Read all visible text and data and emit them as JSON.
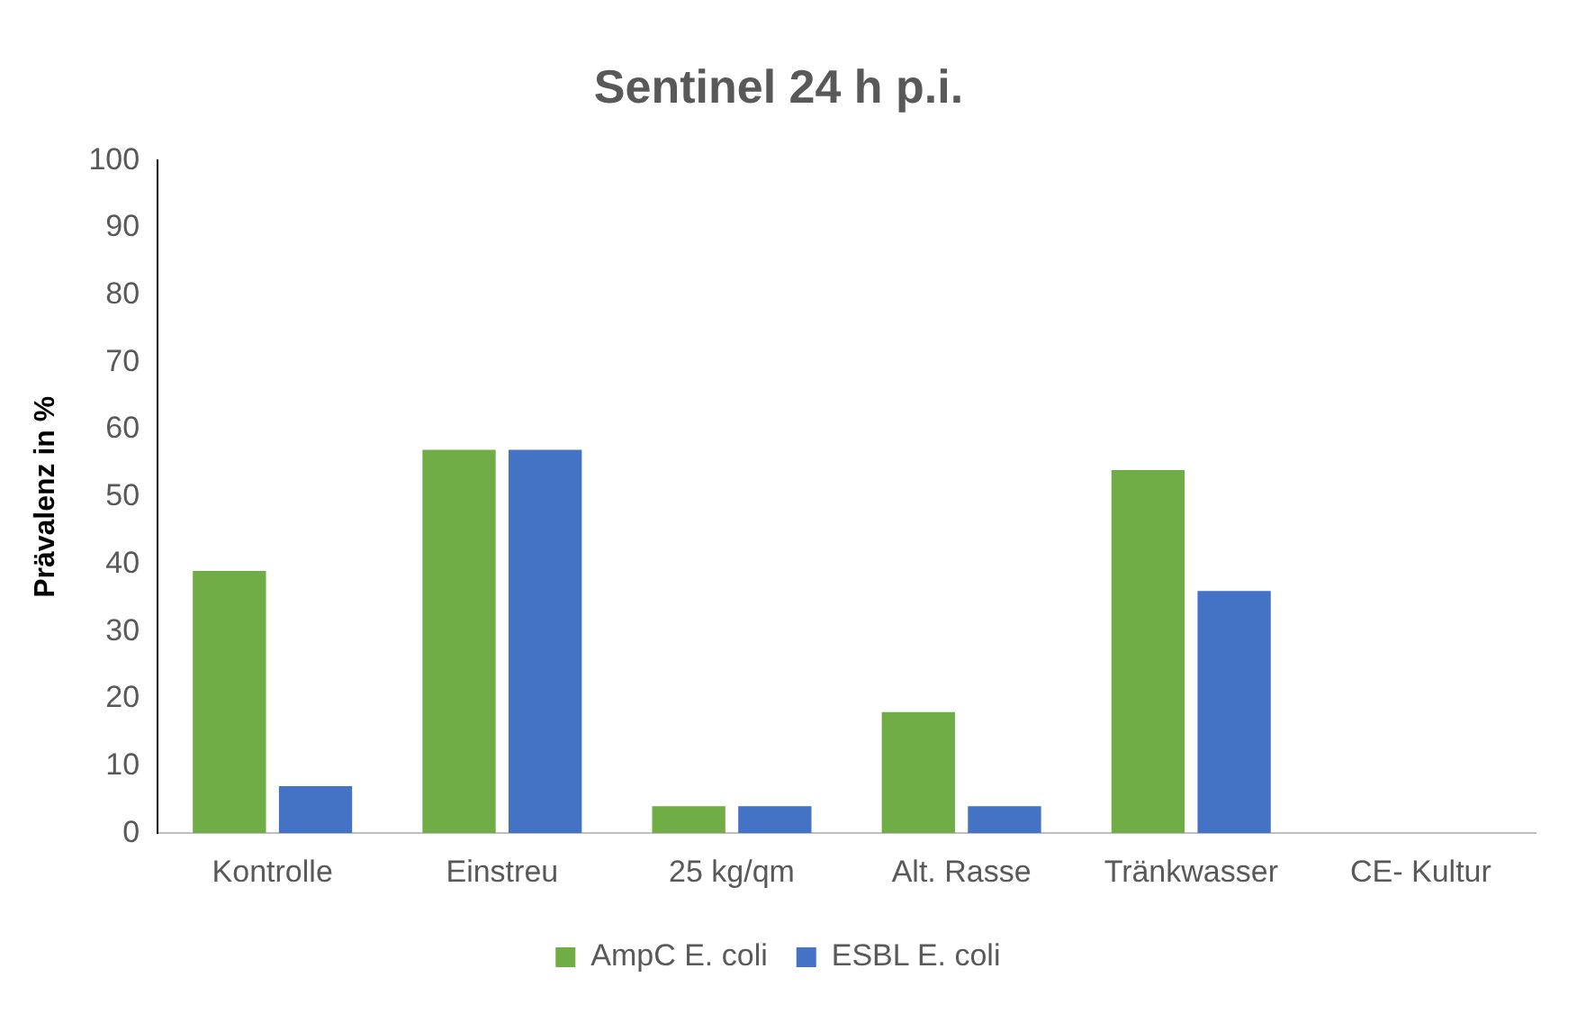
{
  "chart_data": {
    "type": "bar",
    "title": "Sentinel 24 h p.i.",
    "ylabel": "Prävalenz in %",
    "categories": [
      "Kontrolle",
      "Einstreu",
      "25 kg/qm",
      "Alt. Rasse",
      "Tränkwasser",
      "CE- Kultur"
    ],
    "series": [
      {
        "name": "AmpC E. coli",
        "color": "#70ad47",
        "values": [
          39,
          57,
          4,
          18,
          54,
          0
        ]
      },
      {
        "name": "ESBL E. coli",
        "color": "#4472c4",
        "values": [
          7,
          57,
          4,
          4,
          36,
          0
        ]
      }
    ],
    "ylim": [
      0,
      100
    ],
    "yticks": [
      0,
      10,
      20,
      30,
      40,
      50,
      60,
      70,
      80,
      90,
      100
    ],
    "grid": false,
    "legend": "bottom"
  }
}
